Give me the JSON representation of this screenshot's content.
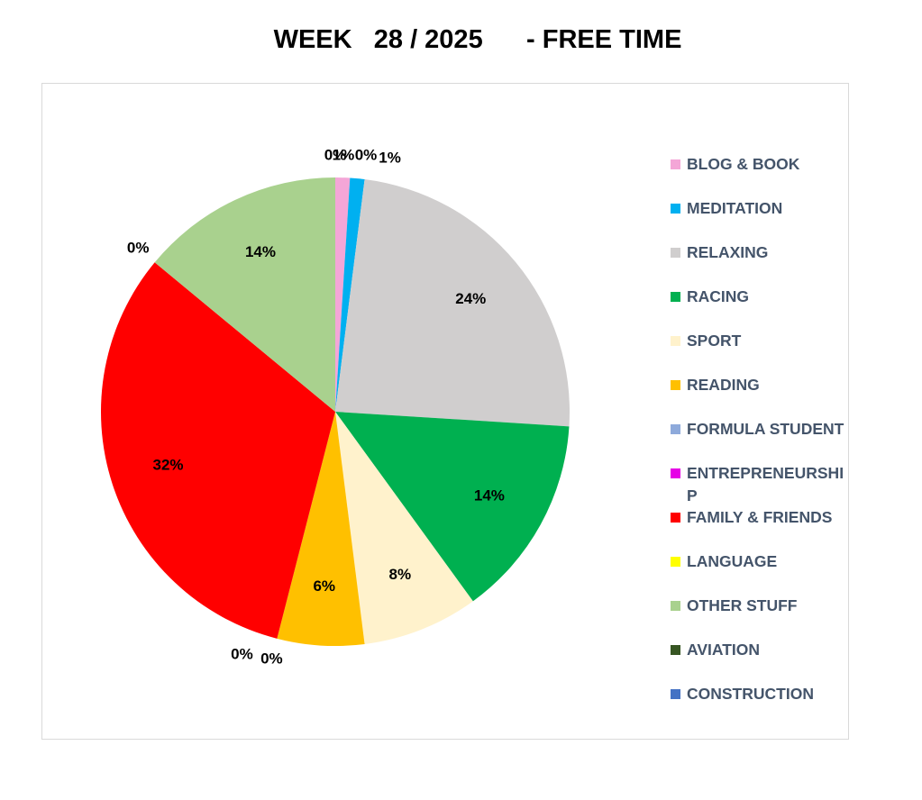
{
  "chart_data": {
    "type": "pie",
    "title": "WEEK   28 / 2025      - FREE TIME",
    "categories": [
      "BLOG & BOOK",
      "MEDITATION",
      "RELAXING",
      "RACING",
      "SPORT",
      "READING",
      "FORMULA STUDENT",
      "ENTREPRENEURSHIP",
      "FAMILY & FRIENDS",
      "LANGUAGE",
      "OTHER STUFF",
      "AVIATION",
      "CONSTRUCTION"
    ],
    "values": [
      1,
      1,
      24,
      14,
      8,
      6,
      0,
      0,
      32,
      0,
      14,
      0,
      0
    ],
    "value_labels": [
      "1%",
      "1%",
      "24%",
      "14%",
      "8%",
      "6%",
      "0%",
      "0%",
      "32%",
      "0%",
      "14%",
      "0%",
      "0%"
    ],
    "colors": [
      "#f4a6d7",
      "#00b0f0",
      "#d0cece",
      "#00b050",
      "#fff2cc",
      "#ffc000",
      "#8eaadb",
      "#e600e6",
      "#ff0000",
      "#ffff00",
      "#a9d18e",
      "#375623",
      "#4472c4"
    ],
    "legend": "right"
  }
}
